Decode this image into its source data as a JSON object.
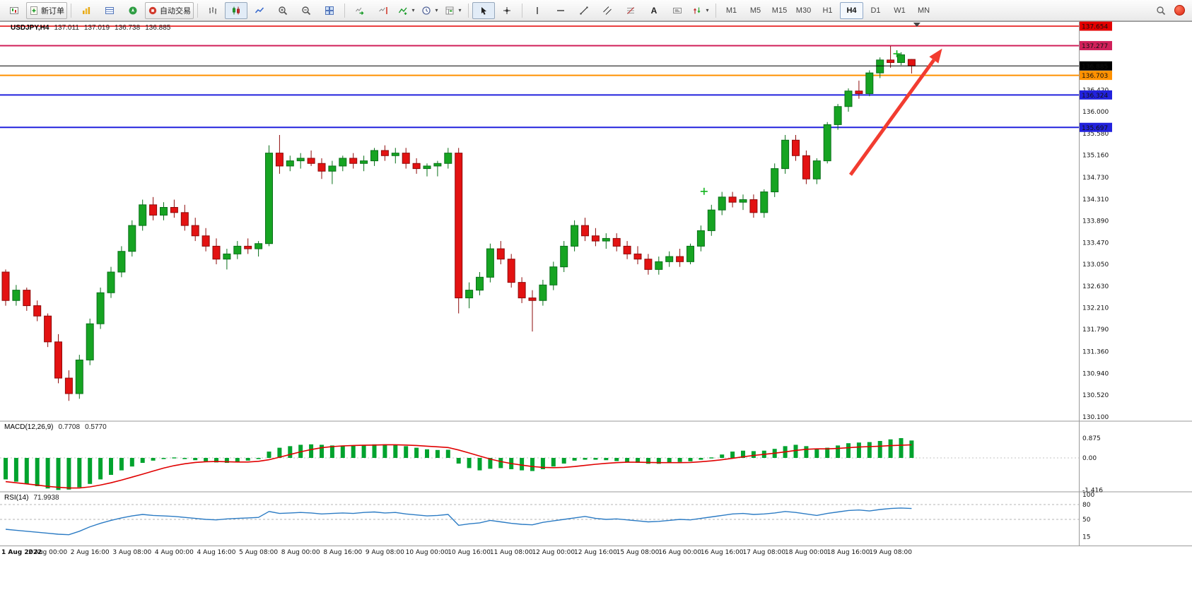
{
  "toolbar": {
    "new_order": "新订单",
    "auto_trading": "自动交易",
    "text_tool": "A",
    "timeframes": [
      "M1",
      "M5",
      "M15",
      "M30",
      "H1",
      "H4",
      "D1",
      "W1",
      "MN"
    ],
    "active_timeframe": "H4"
  },
  "chart": {
    "symbol_label": "USDJPY,H4",
    "ohlc": [
      "137.011",
      "137.019",
      "136.738",
      "136.885"
    ],
    "macd": {
      "name": "MACD(12,26,9)",
      "value": "0.7708",
      "signal": "0.5770"
    },
    "rsi": {
      "name": "RSI(14)",
      "value": "71.9938"
    }
  },
  "chart_data": {
    "type": "candlestick",
    "symbol": "USDJPY",
    "timeframe": "H4",
    "visible_range": {
      "max": 137.8,
      "min": 129.95
    },
    "colors": {
      "up": "#16a422",
      "down": "#e31212",
      "up_stroke": "#0a701a",
      "down_stroke": "#8e0b0b",
      "background": "#ffffff"
    },
    "price_axis": {
      "labels": [
        "136.420",
        "136.000",
        "135.580",
        "135.160",
        "134.730",
        "134.310",
        "133.890",
        "133.470",
        "133.050",
        "132.630",
        "132.210",
        "131.790",
        "131.360",
        "130.940",
        "130.520",
        "130.100"
      ]
    },
    "time_labels": [
      {
        "text": "1 Aug 2022",
        "candle": 0
      },
      {
        "text": "2 Aug 00:00",
        "candle": 4
      },
      {
        "text": "2 Aug 16:00",
        "candle": 8
      },
      {
        "text": "3 Aug 08:00",
        "candle": 12
      },
      {
        "text": "4 Aug 00:00",
        "candle": 16
      },
      {
        "text": "4 Aug 16:00",
        "candle": 20
      },
      {
        "text": "5 Aug 08:00",
        "candle": 24
      },
      {
        "text": "8 Aug 00:00",
        "candle": 28
      },
      {
        "text": "8 Aug 16:00",
        "candle": 32
      },
      {
        "text": "9 Aug 08:00",
        "candle": 36
      },
      {
        "text": "10 Aug 00:00",
        "candle": 40
      },
      {
        "text": "10 Aug 16:00",
        "candle": 44
      },
      {
        "text": "11 Aug 08:00",
        "candle": 48
      },
      {
        "text": "12 Aug 00:00",
        "candle": 52
      },
      {
        "text": "12 Aug 16:00",
        "candle": 56
      },
      {
        "text": "15 Aug 08:00",
        "candle": 60
      },
      {
        "text": "16 Aug 00:00",
        "candle": 64
      },
      {
        "text": "16 Aug 16:00",
        "candle": 68
      },
      {
        "text": "17 Aug 08:00",
        "candle": 72
      },
      {
        "text": "18 Aug 00:00",
        "candle": 76
      },
      {
        "text": "18 Aug 16:00",
        "candle": 80
      },
      {
        "text": "19 Aug 08:00",
        "candle": 84
      }
    ],
    "candles": [
      [
        132.9,
        132.95,
        132.25,
        132.35
      ],
      [
        132.35,
        132.65,
        132.25,
        132.55
      ],
      [
        132.55,
        132.6,
        132.15,
        132.25
      ],
      [
        132.25,
        132.35,
        131.95,
        132.05
      ],
      [
        132.05,
        132.1,
        131.45,
        131.55
      ],
      [
        131.55,
        131.7,
        130.75,
        130.85
      ],
      [
        130.85,
        131.0,
        130.41,
        130.55
      ],
      [
        130.55,
        131.3,
        130.45,
        131.2
      ],
      [
        131.2,
        132.0,
        131.1,
        131.9
      ],
      [
        131.9,
        132.6,
        131.8,
        132.5
      ],
      [
        132.5,
        133.0,
        132.4,
        132.9
      ],
      [
        132.9,
        133.4,
        132.8,
        133.3
      ],
      [
        133.3,
        133.9,
        133.2,
        133.8
      ],
      [
        133.8,
        134.3,
        133.7,
        134.2
      ],
      [
        134.2,
        134.35,
        133.9,
        134.0
      ],
      [
        134.0,
        134.25,
        133.9,
        134.15
      ],
      [
        134.15,
        134.3,
        133.95,
        134.05
      ],
      [
        134.05,
        134.2,
        133.7,
        133.8
      ],
      [
        133.8,
        133.95,
        133.5,
        133.6
      ],
      [
        133.6,
        133.75,
        133.3,
        133.4
      ],
      [
        133.4,
        133.55,
        133.05,
        133.15
      ],
      [
        133.15,
        133.35,
        132.95,
        133.25
      ],
      [
        133.25,
        133.5,
        133.15,
        133.4
      ],
      [
        133.4,
        133.55,
        133.25,
        133.35
      ],
      [
        133.35,
        133.5,
        133.2,
        133.45
      ],
      [
        133.45,
        135.35,
        133.4,
        135.2
      ],
      [
        135.2,
        135.55,
        134.8,
        134.95
      ],
      [
        134.95,
        135.15,
        134.85,
        135.05
      ],
      [
        135.05,
        135.2,
        134.9,
        135.1
      ],
      [
        135.1,
        135.25,
        134.95,
        135.0
      ],
      [
        135.0,
        135.1,
        134.7,
        134.85
      ],
      [
        134.85,
        135.05,
        134.6,
        134.95
      ],
      [
        134.95,
        135.15,
        134.85,
        135.1
      ],
      [
        135.1,
        135.2,
        134.9,
        135.0
      ],
      [
        135.0,
        135.15,
        134.85,
        135.05
      ],
      [
        135.05,
        135.3,
        134.95,
        135.25
      ],
      [
        135.25,
        135.35,
        135.05,
        135.15
      ],
      [
        135.15,
        135.3,
        135.0,
        135.2
      ],
      [
        135.2,
        135.3,
        134.9,
        135.0
      ],
      [
        135.0,
        135.1,
        134.8,
        134.9
      ],
      [
        134.9,
        135.0,
        134.75,
        134.95
      ],
      [
        134.95,
        135.05,
        134.75,
        135.0
      ],
      [
        135.0,
        135.3,
        134.9,
        135.2
      ],
      [
        135.2,
        135.3,
        132.1,
        132.4
      ],
      [
        132.4,
        132.7,
        132.2,
        132.55
      ],
      [
        132.55,
        132.9,
        132.45,
        132.8
      ],
      [
        132.8,
        133.45,
        132.7,
        133.35
      ],
      [
        133.35,
        133.5,
        133.05,
        133.15
      ],
      [
        133.15,
        133.25,
        132.6,
        132.7
      ],
      [
        132.7,
        132.8,
        132.3,
        132.4
      ],
      [
        132.4,
        132.55,
        131.75,
        132.35
      ],
      [
        132.35,
        132.75,
        132.25,
        132.65
      ],
      [
        132.65,
        133.1,
        132.55,
        133.0
      ],
      [
        133.0,
        133.5,
        132.9,
        133.4
      ],
      [
        133.4,
        133.9,
        133.3,
        133.8
      ],
      [
        133.8,
        133.95,
        133.5,
        133.6
      ],
      [
        133.6,
        133.75,
        133.4,
        133.5
      ],
      [
        133.5,
        133.65,
        133.35,
        133.55
      ],
      [
        133.55,
        133.65,
        133.3,
        133.4
      ],
      [
        133.4,
        133.5,
        133.15,
        133.25
      ],
      [
        133.25,
        133.4,
        133.05,
        133.15
      ],
      [
        133.15,
        133.25,
        132.85,
        132.95
      ],
      [
        132.95,
        133.2,
        132.85,
        133.1
      ],
      [
        133.1,
        133.3,
        133.0,
        133.2
      ],
      [
        133.2,
        133.35,
        133.0,
        133.1
      ],
      [
        133.1,
        133.45,
        133.05,
        133.4
      ],
      [
        133.4,
        133.8,
        133.3,
        133.7
      ],
      [
        133.7,
        134.2,
        133.6,
        134.1
      ],
      [
        134.1,
        134.45,
        134.0,
        134.35
      ],
      [
        134.35,
        134.45,
        134.15,
        134.25
      ],
      [
        134.25,
        134.4,
        134.1,
        134.3
      ],
      [
        134.3,
        134.4,
        133.95,
        134.05
      ],
      [
        134.05,
        134.5,
        133.95,
        134.45
      ],
      [
        134.45,
        135.0,
        134.35,
        134.9
      ],
      [
        134.9,
        135.55,
        134.8,
        135.45
      ],
      [
        135.45,
        135.55,
        135.05,
        135.15
      ],
      [
        135.15,
        135.25,
        134.6,
        134.7
      ],
      [
        134.7,
        135.1,
        134.6,
        135.05
      ],
      [
        135.05,
        135.8,
        135.0,
        135.75
      ],
      [
        135.75,
        136.15,
        135.65,
        136.1
      ],
      [
        136.1,
        136.45,
        136.0,
        136.4
      ],
      [
        136.4,
        136.6,
        136.25,
        136.35
      ],
      [
        136.35,
        136.8,
        136.3,
        136.75
      ],
      [
        136.75,
        137.05,
        136.65,
        137.0
      ],
      [
        137.0,
        137.27,
        136.85,
        136.95
      ],
      [
        136.95,
        137.15,
        136.9,
        137.1
      ],
      [
        137.011,
        137.019,
        136.738,
        136.885
      ]
    ],
    "objects": {
      "hlines": [
        {
          "price": 137.654,
          "label": "137.654",
          "color": "#e40000",
          "width": 1.4
        },
        {
          "price": 137.277,
          "label": "137.277",
          "color": "#d0205a",
          "width": 2
        },
        {
          "price": 136.703,
          "label": "136.703",
          "color": "#ff9100",
          "width": 2
        },
        {
          "price": 136.324,
          "label": "136.324",
          "color": "#2222dd",
          "width": 2
        },
        {
          "price": 135.697,
          "label": "135.697",
          "color": "#2222dd",
          "width": 2
        }
      ],
      "current_price_line": {
        "price": 136.885,
        "label": "136.885",
        "color": "#000000"
      },
      "arrow": {
        "from_candle": 80.2,
        "from_price": 134.78,
        "to_candle": 88.9,
        "to_price": 137.22,
        "color": "#f23c30"
      },
      "plus_markers": [
        {
          "candle": 66.3,
          "price": 134.46
        },
        {
          "candle": 84.6,
          "price": 137.12
        }
      ],
      "marker_color": "#12b41e",
      "end_marker": {
        "candle": 86.5,
        "price": 137.72
      }
    },
    "macd": {
      "scale": [
        "0.875",
        "0.00",
        "-1.416"
      ],
      "hist_color": "#00a32e",
      "signal_color": "#e00000",
      "histogram": [
        -0.95,
        -1.05,
        -1.15,
        -1.25,
        -1.35,
        -1.416,
        -1.4,
        -1.3,
        -1.15,
        -0.95,
        -0.75,
        -0.55,
        -0.38,
        -0.22,
        -0.12,
        -0.05,
        -0.02,
        -0.05,
        -0.1,
        -0.15,
        -0.2,
        -0.22,
        -0.18,
        -0.12,
        -0.05,
        0.28,
        0.45,
        0.52,
        0.58,
        0.6,
        0.58,
        0.55,
        0.55,
        0.56,
        0.58,
        0.6,
        0.6,
        0.58,
        0.52,
        0.45,
        0.38,
        0.35,
        0.36,
        -0.25,
        -0.45,
        -0.55,
        -0.48,
        -0.45,
        -0.5,
        -0.55,
        -0.58,
        -0.5,
        -0.38,
        -0.25,
        -0.12,
        -0.08,
        -0.08,
        -0.1,
        -0.14,
        -0.18,
        -0.22,
        -0.26,
        -0.26,
        -0.22,
        -0.18,
        -0.15,
        -0.08,
        0.02,
        0.15,
        0.28,
        0.32,
        0.3,
        0.32,
        0.4,
        0.52,
        0.58,
        0.52,
        0.42,
        0.45,
        0.55,
        0.65,
        0.68,
        0.7,
        0.75,
        0.82,
        0.875,
        0.7708
      ],
      "signal": [
        -1.05,
        -1.1,
        -1.15,
        -1.2,
        -1.26,
        -1.3,
        -1.33,
        -1.33,
        -1.28,
        -1.2,
        -1.1,
        -0.98,
        -0.85,
        -0.72,
        -0.58,
        -0.45,
        -0.34,
        -0.26,
        -0.2,
        -0.17,
        -0.16,
        -0.17,
        -0.18,
        -0.18,
        -0.15,
        -0.08,
        0.03,
        0.15,
        0.27,
        0.37,
        0.45,
        0.5,
        0.53,
        0.55,
        0.56,
        0.57,
        0.58,
        0.58,
        0.57,
        0.55,
        0.52,
        0.49,
        0.46,
        0.35,
        0.22,
        0.08,
        -0.05,
        -0.16,
        -0.25,
        -0.32,
        -0.38,
        -0.42,
        -0.43,
        -0.42,
        -0.38,
        -0.33,
        -0.28,
        -0.24,
        -0.21,
        -0.19,
        -0.19,
        -0.2,
        -0.21,
        -0.21,
        -0.21,
        -0.2,
        -0.17,
        -0.13,
        -0.08,
        -0.02,
        0.05,
        0.11,
        0.16,
        0.21,
        0.27,
        0.33,
        0.38,
        0.4,
        0.4,
        0.42,
        0.45,
        0.48,
        0.5,
        0.52,
        0.545,
        0.56,
        0.577
      ]
    },
    "rsi": {
      "scale": [
        "100",
        "80",
        "50",
        "15"
      ],
      "levels": [
        80,
        50
      ],
      "color": "#2b7bc4",
      "values": [
        30,
        28,
        26,
        24,
        22,
        20,
        19,
        26,
        35,
        42,
        48,
        53,
        57,
        60,
        58,
        57,
        56,
        54,
        52,
        50,
        49,
        51,
        52,
        53,
        54,
        66,
        62,
        63,
        64,
        63,
        61,
        62,
        63,
        62,
        64,
        65,
        63,
        64,
        61,
        59,
        57,
        58,
        60,
        38,
        41,
        43,
        48,
        45,
        42,
        40,
        39,
        44,
        47,
        50,
        53,
        56,
        52,
        50,
        51,
        49,
        47,
        45,
        46,
        48,
        50,
        49,
        52,
        55,
        58,
        61,
        62,
        60,
        61,
        63,
        66,
        64,
        61,
        58,
        62,
        65,
        68,
        69,
        67,
        70,
        72,
        73,
        71.99
      ]
    }
  }
}
